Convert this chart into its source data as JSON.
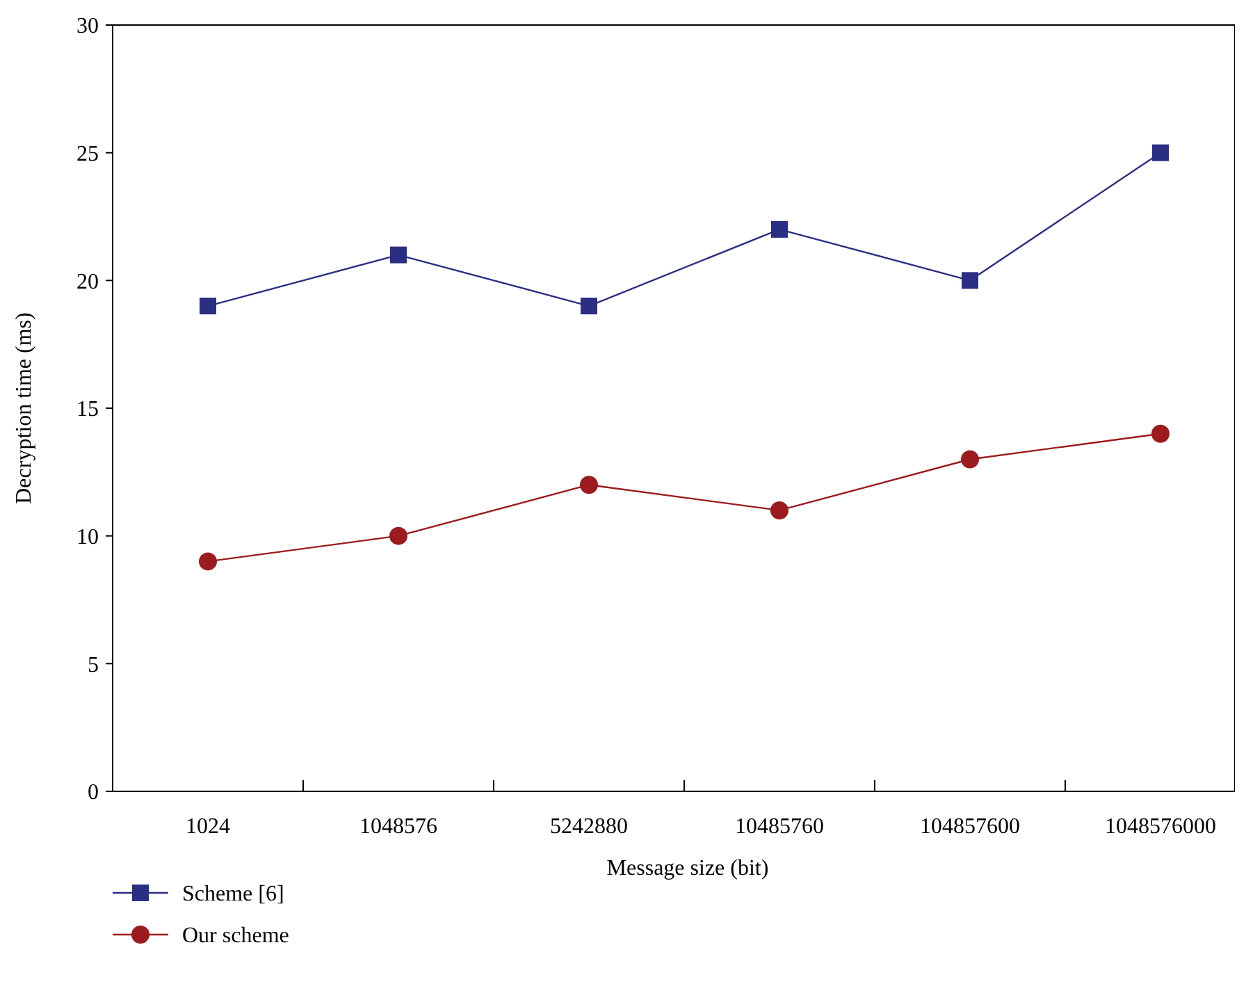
{
  "chart_data": {
    "type": "line",
    "xlabel": "Message size (bit)",
    "ylabel": "Decryption time (ms)",
    "categories": [
      "1024",
      "1048576",
      "5242880",
      "10485760",
      "104857600",
      "1048576000"
    ],
    "ylim": [
      0,
      30
    ],
    "yticks": [
      0,
      5,
      10,
      15,
      20,
      25,
      30
    ],
    "grid": false,
    "legend": "bottom left",
    "series": [
      {
        "name": "Scheme [6]",
        "color": "#2b2f84",
        "marker": "square",
        "values": [
          19,
          21,
          19,
          22,
          20,
          25
        ]
      },
      {
        "name": "Our scheme",
        "color": "#9b1b1e",
        "marker": "circle",
        "values": [
          9,
          10,
          12,
          11,
          13,
          14
        ]
      }
    ]
  }
}
